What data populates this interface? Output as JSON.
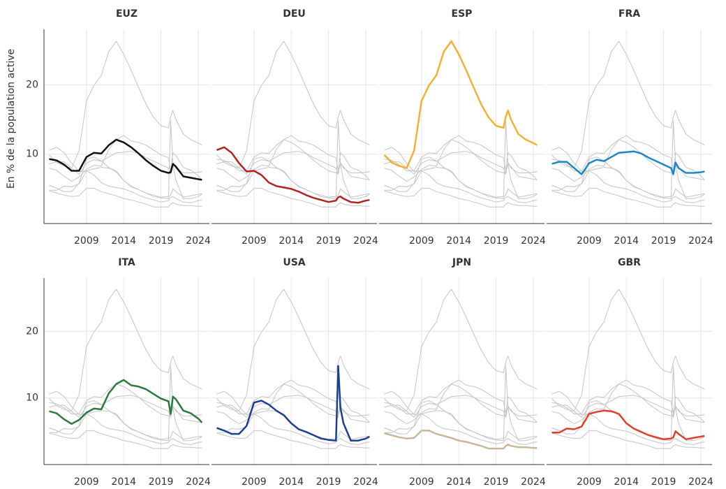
{
  "chart_data": {
    "type": "line",
    "y_label": "En % de la population active",
    "x": [
      2004,
      2005,
      2006,
      2007,
      2008,
      2009,
      2010,
      2011,
      2012,
      2013,
      2014,
      2015,
      2016,
      2017,
      2018,
      2019,
      2020,
      2020.3,
      2020.6,
      2021,
      2022,
      2023,
      2024,
      2024.5
    ],
    "xlim": [
      2003.3,
      2025.5
    ],
    "ylim": [
      0,
      28
    ],
    "xticks": [
      2009,
      2014,
      2019,
      2024
    ],
    "yticks": [
      10,
      20
    ],
    "grid": true,
    "background_color": "#c4c4c4",
    "series": [
      {
        "name": "EUZ",
        "color": "#111111",
        "values": [
          9.3,
          9.1,
          8.5,
          7.6,
          7.6,
          9.6,
          10.2,
          10.1,
          11.3,
          12.1,
          11.7,
          11.0,
          10.1,
          9.1,
          8.3,
          7.6,
          7.3,
          7.4,
          8.6,
          8.2,
          6.8,
          6.6,
          6.4,
          6.3
        ]
      },
      {
        "name": "DEU",
        "color": "#b22222",
        "values": [
          10.6,
          11.0,
          10.2,
          8.7,
          7.5,
          7.6,
          7.0,
          5.9,
          5.4,
          5.2,
          5.0,
          4.6,
          4.1,
          3.7,
          3.4,
          3.1,
          3.3,
          3.8,
          3.9,
          3.6,
          3.1,
          3.0,
          3.3,
          3.4
        ]
      },
      {
        "name": "ESP",
        "color": "#f2b134",
        "values": [
          9.9,
          8.8,
          8.3,
          8.0,
          10.5,
          17.7,
          19.9,
          21.4,
          24.8,
          26.3,
          24.4,
          22.1,
          19.6,
          17.2,
          15.3,
          14.1,
          13.8,
          15.4,
          16.3,
          15.0,
          12.9,
          12.1,
          11.6,
          11.3
        ]
      },
      {
        "name": "FRA",
        "color": "#1f86c6",
        "values": [
          8.6,
          8.9,
          8.9,
          8.0,
          7.1,
          8.7,
          9.2,
          9.0,
          9.6,
          10.2,
          10.3,
          10.4,
          10.1,
          9.5,
          9.0,
          8.5,
          8.0,
          7.1,
          8.8,
          8.0,
          7.3,
          7.3,
          7.4,
          7.5
        ]
      },
      {
        "name": "ITA",
        "color": "#2b7a3e",
        "values": [
          8.0,
          7.7,
          6.8,
          6.1,
          6.7,
          7.8,
          8.4,
          8.3,
          10.7,
          12.1,
          12.7,
          11.9,
          11.7,
          11.3,
          10.6,
          9.9,
          9.5,
          7.6,
          10.2,
          9.8,
          8.1,
          7.7,
          6.9,
          6.3
        ]
      },
      {
        "name": "USA",
        "color": "#1c3f8f",
        "values": [
          5.5,
          5.1,
          4.6,
          4.6,
          5.8,
          9.3,
          9.6,
          9.0,
          8.1,
          7.4,
          6.2,
          5.3,
          4.9,
          4.4,
          3.9,
          3.7,
          3.6,
          14.8,
          8.5,
          6.2,
          3.6,
          3.6,
          3.9,
          4.2
        ]
      },
      {
        "name": "JPN",
        "color": "#c8b89a",
        "values": [
          4.7,
          4.4,
          4.1,
          3.9,
          4.0,
          5.1,
          5.1,
          4.6,
          4.3,
          4.0,
          3.6,
          3.4,
          3.1,
          2.8,
          2.4,
          2.4,
          2.4,
          2.8,
          3.0,
          2.8,
          2.6,
          2.6,
          2.5,
          2.5
        ]
      },
      {
        "name": "GBR",
        "color": "#e0402b",
        "values": [
          4.8,
          4.8,
          5.4,
          5.3,
          5.7,
          7.6,
          7.9,
          8.1,
          8.0,
          7.6,
          6.2,
          5.4,
          4.9,
          4.4,
          4.1,
          3.8,
          3.9,
          4.1,
          5.0,
          4.6,
          3.8,
          4.0,
          4.2,
          4.3
        ]
      }
    ]
  }
}
